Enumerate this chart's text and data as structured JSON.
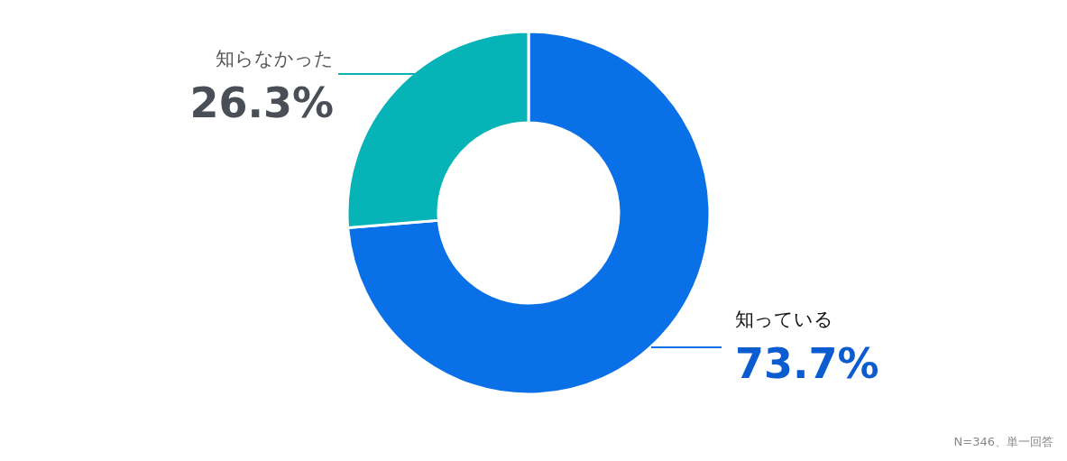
{
  "chart_data": {
    "type": "donut",
    "categories": [
      "知っている",
      "知らなかった"
    ],
    "values": [
      73.7,
      26.3
    ],
    "colors": [
      "#0a70e8",
      "#06b3b6"
    ],
    "value_labels": [
      "73.7%",
      "26.3%"
    ],
    "annotations": [
      "N=346、単一回答"
    ]
  }
}
